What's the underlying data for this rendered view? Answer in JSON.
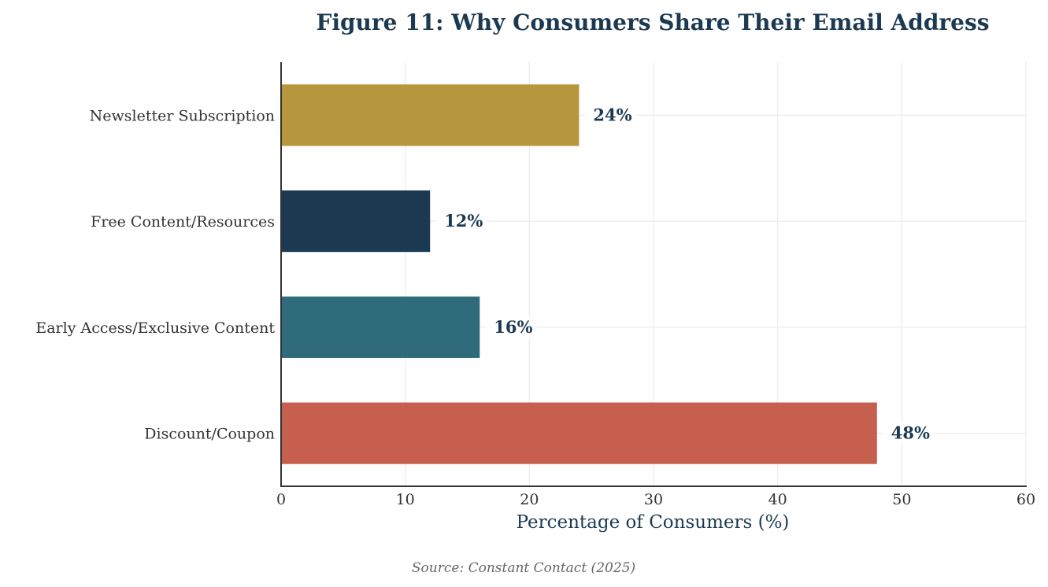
{
  "chart_data": {
    "type": "bar",
    "orientation": "horizontal",
    "title": "Figure 11: Why Consumers Share Their Email Address",
    "xlabel": "Percentage of Consumers (%)",
    "ylabel": "",
    "categories": [
      "Newsletter Subscription",
      "Free Content/Resources",
      "Early Access/Exclusive Content",
      "Discount/Coupon"
    ],
    "values": [
      24,
      12,
      16,
      48
    ],
    "data_labels": [
      "24%",
      "12%",
      "16%",
      "48%"
    ],
    "colors": [
      "#b8963e",
      "#1b3a52",
      "#2f6b7a",
      "#c65f4e"
    ],
    "xlim": [
      0,
      60
    ],
    "xticks": [
      0,
      10,
      20,
      30,
      40,
      50,
      60
    ],
    "xtick_labels": [
      "0",
      "10",
      "20",
      "30",
      "40",
      "50",
      "60"
    ],
    "grid": true,
    "source": "Source: Constant Contact (2025)"
  }
}
